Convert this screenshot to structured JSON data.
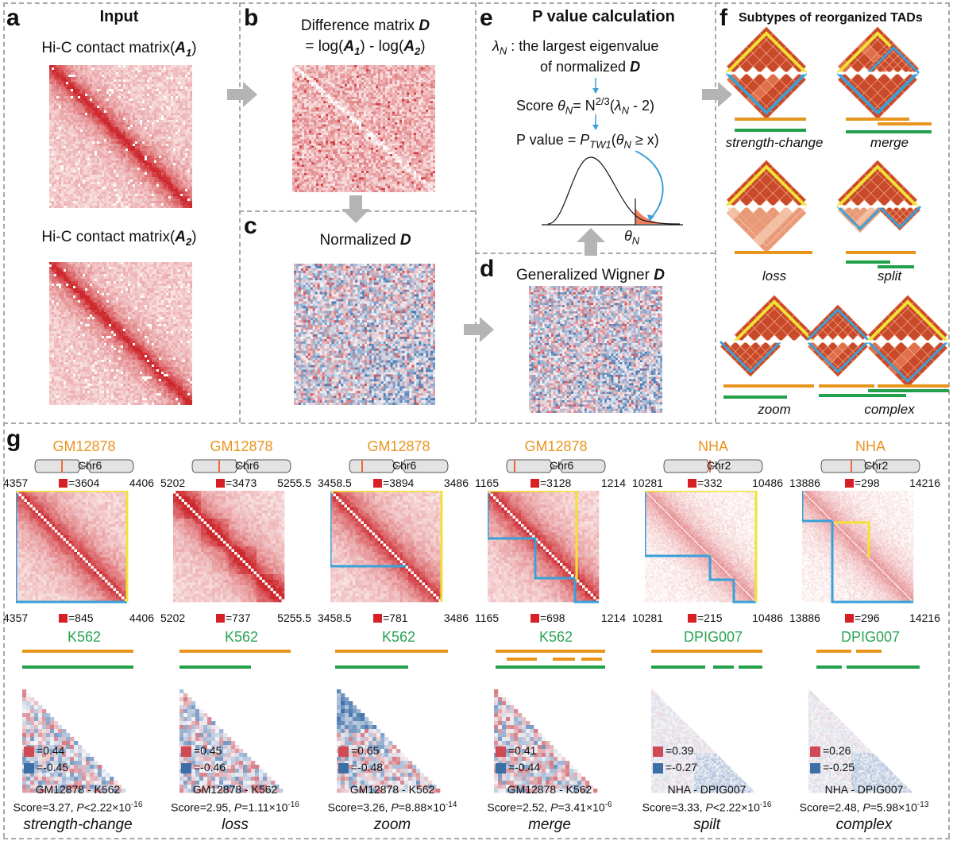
{
  "colors": {
    "dash": "#a9a9a9",
    "hic_red": "#d63a3a",
    "diff_blue": "#3b6fa6",
    "tad_yellow": "#f2e233",
    "tad_blue": "#3aa0d8",
    "tad_fill": "#c94a2a",
    "orange": "#e8951e",
    "green": "#22a04b",
    "arrow": "#b4b4b4"
  },
  "panel_a": {
    "label": "a",
    "title": "Input",
    "matrix1_label": "Hi-C contact matrix(",
    "matrix1_sym": "A",
    "matrix1_sub": "1",
    "matrix2_label": "Hi-C contact matrix(",
    "matrix2_sym": "A",
    "matrix2_sub": "2",
    "close": ")"
  },
  "panel_b": {
    "label": "b",
    "title": "Difference matrix ",
    "title_sym": "D",
    "formula_pre": "= log(",
    "formula_mid": ") - log(",
    "formula_post": ")",
    "sym": "A",
    "sub1": "1",
    "sub2": "2"
  },
  "panel_c": {
    "label": "c",
    "title": "Normalized ",
    "title_sym": "D"
  },
  "panel_d": {
    "label": "d",
    "title": "Generalized Wigner ",
    "title_sym": "D"
  },
  "panel_e": {
    "label": "e",
    "title": "P value calculation",
    "lambda_sym": "λ",
    "lambda_sub": "N",
    "line1": " : the largest eigenvalue",
    "line2": "of normalized ",
    "line2_sym": "D",
    "score_label": "Score ",
    "theta": "θ",
    "theta_sub": "N",
    "score_eq": "= N",
    "score_exp": "2/3",
    "score_rest_pre": "(",
    "score_rest_post": " - 2)",
    "pval_label": "P value = ",
    "pval_P": "P",
    "pval_sub": "TW1",
    "pval_rest": "(",
    "pval_geq": " ≥ x)",
    "theta_axis": "θ",
    "theta_axis_sub": "N"
  },
  "panel_f": {
    "label": "f",
    "title": "Subtypes of reorganized TADs",
    "subtypes": [
      "strength-change",
      "merge",
      "loss",
      "split",
      "zoom",
      "complex"
    ]
  },
  "panel_g": {
    "label": "g",
    "columns": [
      {
        "cell1": "GM12878",
        "chr": "Chr6",
        "left": "4357",
        "right": "4406",
        "top_count": "=3604",
        "bottom_left": "4357",
        "bottom_right": "4406",
        "bottom_count": "=845",
        "cell2": "K562",
        "legend_pos": "=0.44",
        "legend_neg": "=-0.45",
        "comparison": "GM12878 - K562",
        "score": "Score=3.27, ",
        "p": "P",
        "p_val": "<2.22×10",
        "p_exp": "-16",
        "subtype": "strength-change"
      },
      {
        "cell1": "GM12878",
        "chr": "Chr6",
        "left": "5202",
        "right": "5255.5",
        "top_count": "=3473",
        "bottom_left": "5202",
        "bottom_right": "5255.5",
        "bottom_count": "=737",
        "cell2": "K562",
        "legend_pos": "=0.45",
        "legend_neg": "=-0.46",
        "comparison": "GM12878 - K562",
        "score": "Score=2.95, ",
        "p": "P",
        "p_val": "=1.11×10",
        "p_exp": "-16",
        "subtype": "loss"
      },
      {
        "cell1": "GM12878",
        "chr": "Chr6",
        "left": "3458.5",
        "right": "3486",
        "top_count": "=3894",
        "bottom_left": "3458.5",
        "bottom_right": "3486",
        "bottom_count": "=781",
        "cell2": "K562",
        "legend_pos": "=0.65",
        "legend_neg": "=-0.48",
        "comparison": "GM12878 - K562",
        "score": "Score=3.26, ",
        "p": "P",
        "p_val": "=8.88×10",
        "p_exp": "-14",
        "subtype": "zoom"
      },
      {
        "cell1": "GM12878",
        "chr": "Chr6",
        "left": "1165",
        "right": "1214",
        "top_count": "=3128",
        "bottom_left": "1165",
        "bottom_right": "1214",
        "bottom_count": "=698",
        "cell2": "K562",
        "legend_pos": "=0.41",
        "legend_neg": "=-0.44",
        "comparison": "GM12878 - K562",
        "score": "Score=2.52, ",
        "p": "P",
        "p_val": "=3.41×10",
        "p_exp": "-6",
        "subtype": "merge"
      },
      {
        "cell1": "NHA",
        "chr": "Chr2",
        "left": "10281",
        "right": "10486",
        "top_count": "=332",
        "bottom_left": "10281",
        "bottom_right": "10486",
        "bottom_count": "=215",
        "cell2": "DPIG007",
        "legend_pos": "=0.39",
        "legend_neg": "=-0.27",
        "comparison": "NHA - DPIG007",
        "score": "Score=3.33, ",
        "p": "P",
        "p_val": "<2.22×10",
        "p_exp": "-16",
        "subtype": "spilt"
      },
      {
        "cell1": "NHA",
        "chr": "Chr2",
        "left": "13886",
        "right": "14216",
        "top_count": "=298",
        "bottom_left": "13886",
        "bottom_right": "14216",
        "bottom_count": "=296",
        "cell2": "DPIG007",
        "legend_pos": "=0.26",
        "legend_neg": "=-0.25",
        "comparison": "NHA - DPIG007",
        "score": "Score=2.48, ",
        "p": "P",
        "p_val": "=5.98×10",
        "p_exp": "-13",
        "subtype": "complex"
      }
    ]
  }
}
